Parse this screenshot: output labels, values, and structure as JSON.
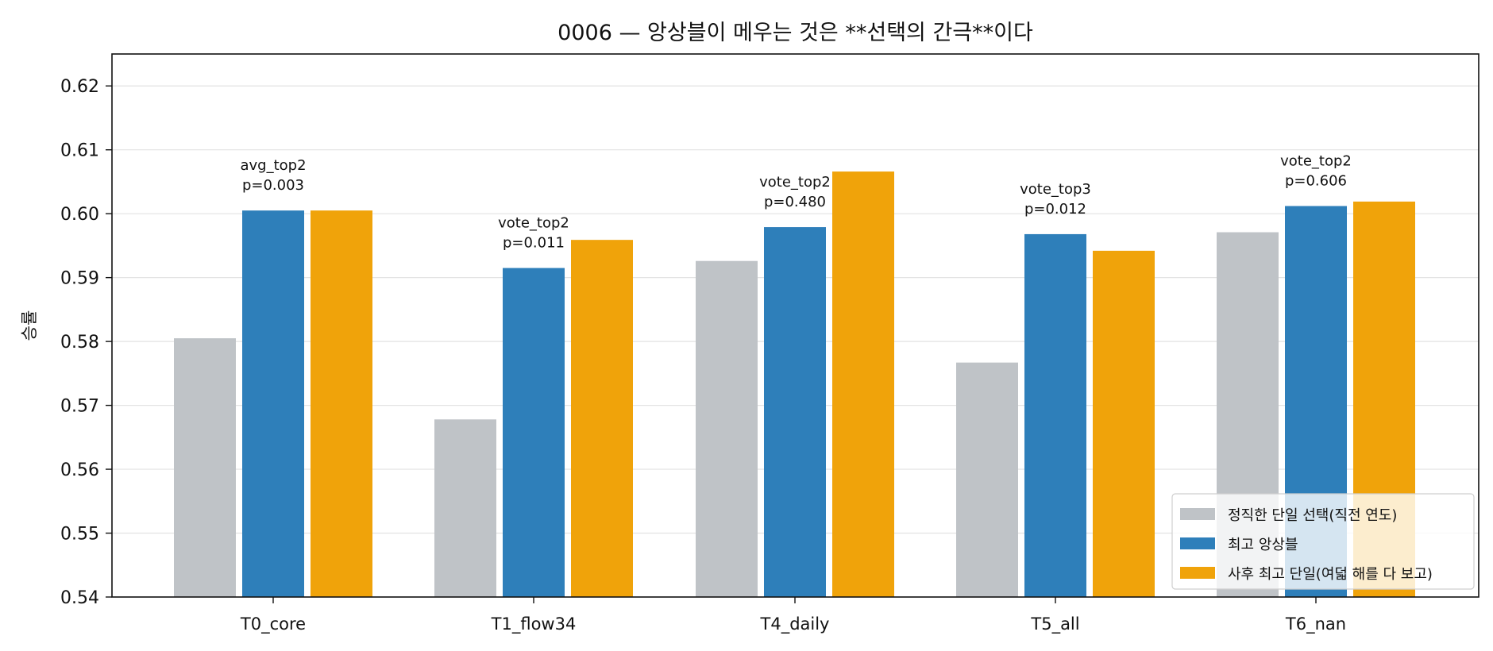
{
  "chart_data": {
    "type": "bar",
    "title": "0006 — 앙상블이 메우는 것은 **선택의 간극**이다",
    "xlabel": "",
    "ylabel": "승률",
    "ylim": [
      0.54,
      0.625
    ],
    "yticks": [
      "0.54",
      "0.55",
      "0.56",
      "0.57",
      "0.58",
      "0.59",
      "0.60",
      "0.61",
      "0.62"
    ],
    "grid": "horizontal",
    "legend_position": "lower-right",
    "categories": [
      "T0_core",
      "T1_flow34",
      "T4_daily",
      "T5_all",
      "T6_nan"
    ],
    "series": [
      {
        "name": "정직한 단일 선택(직전 연도)",
        "color": "#bfc3c7",
        "values": [
          0.5805,
          0.5678,
          0.5926,
          0.5767,
          0.5971
        ]
      },
      {
        "name": "최고 앙상블",
        "color": "#2e7fba",
        "values": [
          0.6005,
          0.5915,
          0.5979,
          0.5968,
          0.6012
        ]
      },
      {
        "name": "사후 최고 단일(여덟 해를 다 보고)",
        "color": "#f0a30a",
        "values": [
          0.6005,
          0.5959,
          0.6066,
          0.5942,
          0.6019
        ]
      }
    ],
    "annotations": [
      {
        "line1": "avg_top2",
        "line2": "p=0.003"
      },
      {
        "line1": "vote_top2",
        "line2": "p=0.011"
      },
      {
        "line1": "vote_top2",
        "line2": "p=0.480"
      },
      {
        "line1": "vote_top3",
        "line2": "p=0.012"
      },
      {
        "line1": "vote_top2",
        "line2": "p=0.606"
      }
    ]
  }
}
